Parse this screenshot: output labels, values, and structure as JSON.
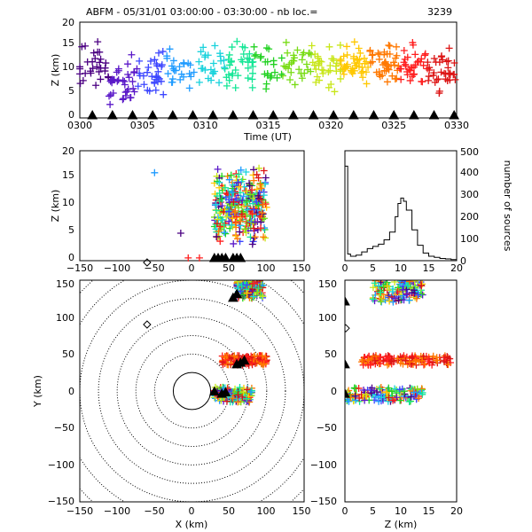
{
  "title": "ABFM - 05/31/01 03:00:00 - 03:30:00 - nb loc.=",
  "count": "3239",
  "marker_colors": [
    "#4b0082",
    "#5a18c8",
    "#3c46ff",
    "#1e9bff",
    "#19d2dc",
    "#14e696",
    "#23d223",
    "#78dc14",
    "#c8e619",
    "#ffc800",
    "#ff7800",
    "#ff1e1e",
    "#dc1414"
  ],
  "panels": {
    "time_height": {
      "xlabel": "Time (UT)",
      "ylabel": "Z (km)",
      "xticks": [
        "0300",
        "0305",
        "0310",
        "0315",
        "0320",
        "0325",
        "0330"
      ],
      "yticks": [
        "0",
        "5",
        "10",
        "15",
        "20"
      ]
    },
    "x_height": {
      "ylabel": "Z (km)",
      "xticks": [
        "−150",
        "−100",
        "−50",
        "0",
        "50",
        "100",
        "150"
      ],
      "yticks": [
        "0",
        "5",
        "10",
        "15",
        "20"
      ]
    },
    "histogram": {
      "ylabel": "number of sources",
      "xticks": [
        "0",
        "5",
        "10",
        "15",
        "20"
      ],
      "yticks": [
        "0",
        "100",
        "200",
        "300",
        "400",
        "500"
      ]
    },
    "plan": {
      "xlabel": "X (km)",
      "ylabel": "Y (km)",
      "xticks": [
        "−150",
        "−100",
        "−50",
        "0",
        "50",
        "100",
        "150"
      ],
      "yticks": [
        "−150",
        "−100",
        "−50",
        "0",
        "50",
        "100",
        "150"
      ]
    },
    "height_y": {
      "xlabel": "Z (km)",
      "xticks": [
        "0",
        "5",
        "10",
        "15",
        "20"
      ],
      "yticks": [
        "−150",
        "−100",
        "−50",
        "0",
        "50",
        "100",
        "150"
      ]
    }
  },
  "chart_data": [
    {
      "type": "scatter",
      "panel": "time_height",
      "title": "ABFM - 05/31/01 03:00:00 - 03:30:00 - nb loc.=    3239",
      "xlabel": "Time (UT)",
      "ylabel": "Z (km)",
      "xlim": [
        0,
        30
      ],
      "ylim": [
        0,
        20
      ],
      "x_unit": "minutes after 03:00 UT",
      "series": [
        {
          "name": "sources",
          "cluster_centers_t": [
            0.5,
            2.5,
            5,
            7.5,
            10,
            12.5,
            15,
            17.5,
            20,
            22.5,
            25,
            27.5,
            29.5
          ],
          "cluster_mean_z": [
            11,
            8,
            9,
            10,
            10.5,
            11,
            11,
            11,
            10.5,
            11,
            11,
            10.5,
            10
          ],
          "z_range": [
            1,
            19
          ]
        }
      ],
      "stations_z": 0
    },
    {
      "type": "scatter",
      "panel": "x_height",
      "xlim": [
        -150,
        150
      ],
      "ylim": [
        0,
        20
      ],
      "series": [
        {
          "name": "sources",
          "x_range": [
            30,
            100
          ],
          "z_range": [
            0,
            19
          ]
        },
        {
          "name": "outliers",
          "points": [
            [
              -50,
              16
            ],
            [
              -15,
              5
            ],
            [
              -5,
              0.5
            ],
            [
              10,
              0.5
            ]
          ]
        }
      ],
      "stations_x": [
        30,
        35,
        40,
        45,
        55,
        60,
        65
      ],
      "diamond": [
        -60,
        0
      ]
    },
    {
      "type": "line",
      "panel": "histogram",
      "xlim": [
        0,
        20
      ],
      "ylim": [
        0,
        500
      ],
      "x": [
        0,
        0.5,
        1,
        2,
        3,
        4,
        5,
        6,
        7,
        8,
        9,
        9.5,
        10,
        10.5,
        11,
        12,
        13,
        14,
        15,
        16,
        17,
        18,
        19,
        20
      ],
      "values": [
        430,
        30,
        20,
        25,
        40,
        55,
        65,
        75,
        95,
        130,
        200,
        260,
        285,
        270,
        230,
        140,
        70,
        35,
        20,
        15,
        10,
        8,
        5,
        5
      ]
    },
    {
      "type": "scatter",
      "panel": "plan",
      "xlim": [
        -150,
        150
      ],
      "ylim": [
        -150,
        150
      ],
      "range_rings_km": [
        25,
        50,
        75,
        100,
        125,
        150,
        175,
        200
      ],
      "clusters": [
        {
          "x_range": [
            40,
            100
          ],
          "y_range": [
            35,
            48
          ]
        },
        {
          "x_range": [
            30,
            80
          ],
          "y_range": [
            -15,
            5
          ]
        },
        {
          "x_range": [
            60,
            95
          ],
          "y_range": [
            125,
            150
          ]
        }
      ],
      "stations": [
        [
          30,
          -2
        ],
        [
          40,
          -5
        ],
        [
          45,
          -3
        ],
        [
          60,
          35
        ],
        [
          65,
          37
        ],
        [
          70,
          40
        ],
        [
          55,
          125
        ],
        [
          60,
          130
        ]
      ],
      "diamond": [
        -60,
        90
      ]
    },
    {
      "type": "scatter",
      "panel": "height_y",
      "xlim": [
        0,
        20
      ],
      "ylim": [
        -150,
        150
      ],
      "clusters": [
        {
          "z_range": [
            3,
            19
          ],
          "y_range": [
            35,
            48
          ]
        },
        {
          "z_range": [
            0,
            14
          ],
          "y_range": [
            -15,
            5
          ]
        },
        {
          "z_range": [
            5,
            14
          ],
          "y_range": [
            120,
            150
          ]
        }
      ],
      "stations_y": [
        -5,
        35,
        120
      ],
      "diamond": [
        0,
        85
      ]
    }
  ]
}
